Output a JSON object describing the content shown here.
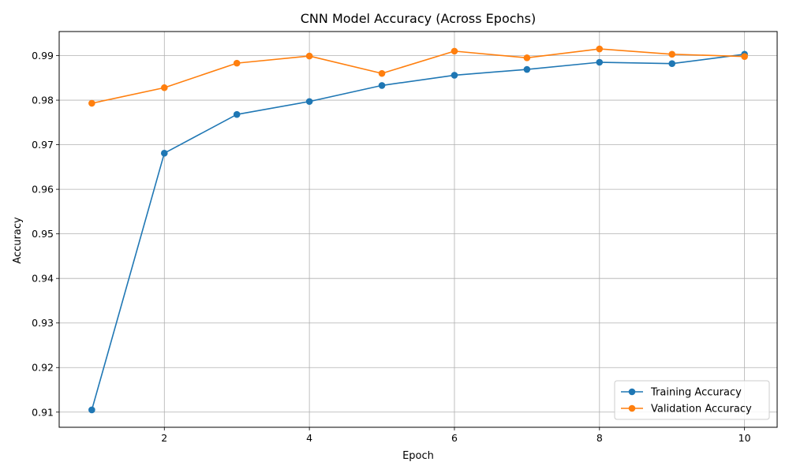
{
  "chart_data": {
    "type": "line",
    "title": "CNN Model Accuracy (Across Epochs)",
    "xlabel": "Epoch",
    "ylabel": "Accuracy",
    "x": [
      1,
      2,
      3,
      4,
      5,
      6,
      7,
      8,
      9,
      10
    ],
    "xlim": [
      0.55,
      10.45
    ],
    "ylim": [
      0.9066,
      0.9954
    ],
    "xticks": [
      2,
      4,
      6,
      8,
      10
    ],
    "yticks": [
      0.91,
      0.92,
      0.93,
      0.94,
      0.95,
      0.96,
      0.97,
      0.98,
      0.99
    ],
    "xtick_labels": [
      "2",
      "4",
      "6",
      "8",
      "10"
    ],
    "ytick_labels": [
      "0.91",
      "0.92",
      "0.93",
      "0.94",
      "0.95",
      "0.96",
      "0.97",
      "0.98",
      "0.99"
    ],
    "grid": true,
    "legend_position": "lower-right",
    "series": [
      {
        "name": "Training Accuracy",
        "color": "#1f77b4",
        "marker": "circle",
        "values": [
          0.9105,
          0.9681,
          0.9768,
          0.9797,
          0.9833,
          0.9856,
          0.9869,
          0.9885,
          0.9882,
          0.9903
        ]
      },
      {
        "name": "Validation Accuracy",
        "color": "#ff7f0e",
        "marker": "circle",
        "values": [
          0.9793,
          0.9828,
          0.9883,
          0.9899,
          0.986,
          0.991,
          0.9895,
          0.9915,
          0.9903,
          0.9898
        ]
      }
    ]
  }
}
